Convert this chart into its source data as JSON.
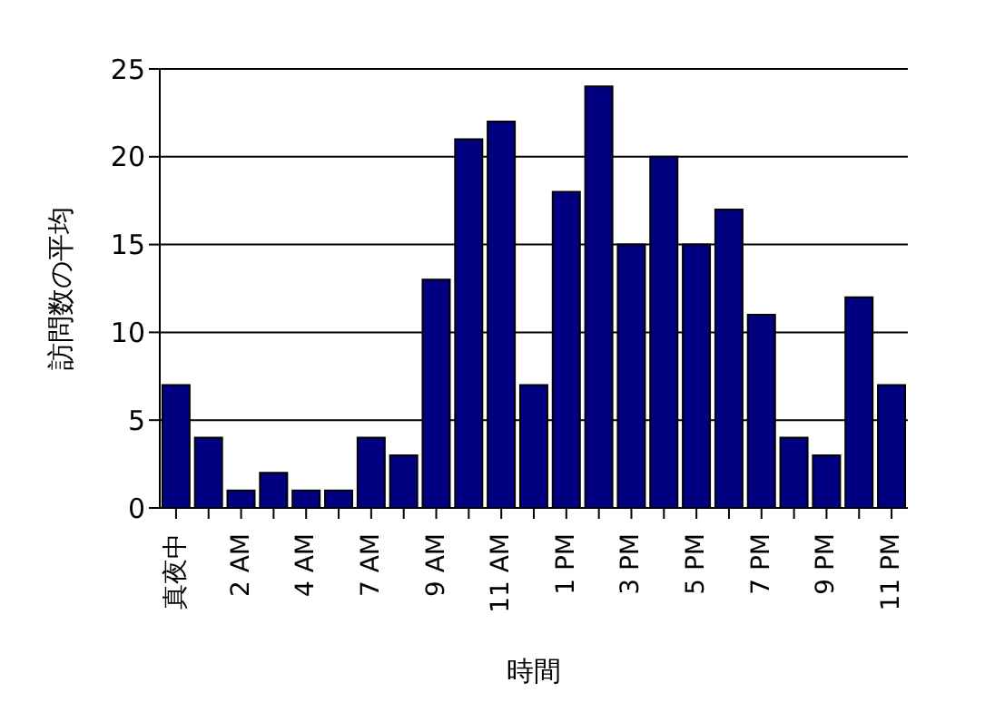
{
  "chart_data": {
    "type": "bar",
    "xlabel": "時間",
    "ylabel": "訪問数の平均",
    "categories": [
      "真夜中",
      null,
      "2 AM",
      null,
      "4 AM",
      null,
      "7 AM",
      null,
      "9 AM",
      null,
      "11 AM",
      null,
      "1 PM",
      null,
      "3 PM",
      null,
      "5 PM",
      null,
      "7 PM",
      null,
      "9 PM",
      null,
      "11 PM"
    ],
    "values": [
      7,
      4,
      1,
      2,
      1,
      1,
      4,
      3,
      13,
      21,
      22,
      7,
      18,
      24,
      15,
      20,
      15,
      17,
      11,
      4,
      3,
      12,
      7
    ],
    "color": "#000080",
    "ylim": [
      0,
      25
    ],
    "yticks": [
      0,
      5,
      10,
      15,
      20,
      25
    ],
    "grid": "y",
    "legend": false
  }
}
